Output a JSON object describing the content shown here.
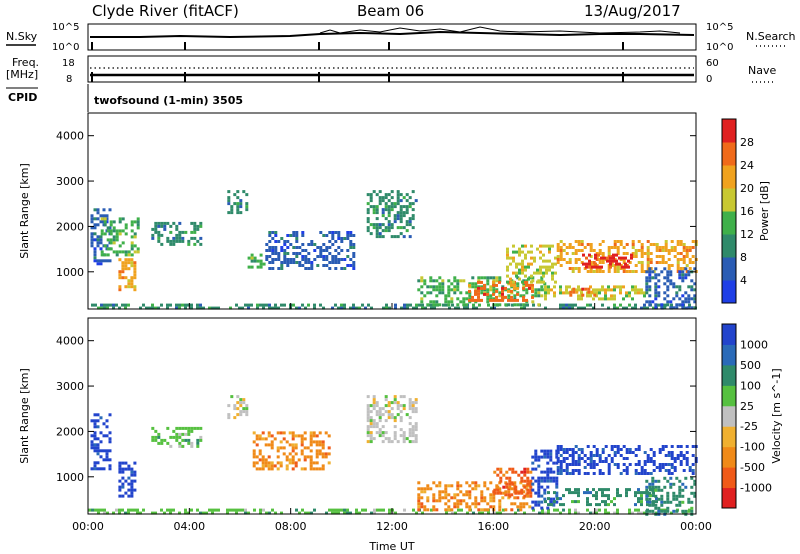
{
  "header": {
    "station": "Clyde River (fitACF)",
    "beam": "Beam 06",
    "date": "13/Aug/2017"
  },
  "top_panels": {
    "nsky_label": "N.Sky",
    "nsky_ticks": [
      "10^5",
      "10^0"
    ],
    "nsearch_label": "N.Search",
    "nsearch_ticks": [
      "10^5",
      "10^0"
    ],
    "freq_label": "Freq.",
    "freq_unit": "[MHz]",
    "freq_ticks": [
      "18",
      "8"
    ],
    "nave_label": "Nave",
    "nave_ticks": [
      "60",
      "0"
    ],
    "cpid_label": "CPID",
    "cpid_text": "twofsound (1-min) 3505"
  },
  "chart_data": [
    {
      "type": "heatmap",
      "name": "power",
      "ylabel": "Slant Range [km]",
      "xlabel": "",
      "yticks": [
        1000,
        2000,
        3000,
        4000
      ],
      "ylim": [
        180,
        4500
      ],
      "xlim": [
        0,
        24
      ],
      "xticks": [
        "00:00",
        "04:00",
        "08:00",
        "12:00",
        "16:00",
        "20:00",
        "00:00"
      ],
      "colorbar": {
        "label": "Power [dB]",
        "ticks": [
          "4",
          "8",
          "12",
          "16",
          "20",
          "24",
          "28"
        ],
        "colors": [
          "#1f3fe6",
          "#2a5cb4",
          "#2f8a6a",
          "#3fb04a",
          "#c8c832",
          "#f0a21e",
          "#f06a1a",
          "#e02020"
        ]
      },
      "regions": [
        {
          "t0": 0.0,
          "t1": 24.0,
          "r0": 180,
          "r1": 300,
          "level": 2
        },
        {
          "t0": 0.1,
          "t1": 0.9,
          "r0": 1200,
          "r1": 2400,
          "level": 1
        },
        {
          "t0": 0.5,
          "t1": 2.0,
          "r0": 1400,
          "r1": 2200,
          "level": 3
        },
        {
          "t0": 1.2,
          "t1": 1.9,
          "r0": 600,
          "r1": 1300,
          "level": 5
        },
        {
          "t0": 2.5,
          "t1": 4.5,
          "r0": 1600,
          "r1": 2100,
          "level": 2
        },
        {
          "t0": 5.5,
          "t1": 6.3,
          "r0": 2300,
          "r1": 2800,
          "level": 2
        },
        {
          "t0": 6.3,
          "t1": 7.0,
          "r0": 1100,
          "r1": 1400,
          "level": 3
        },
        {
          "t0": 7.0,
          "t1": 10.5,
          "r0": 1100,
          "r1": 1900,
          "level": 1
        },
        {
          "t0": 11.0,
          "t1": 13.0,
          "r0": 1800,
          "r1": 2800,
          "level": 2
        },
        {
          "t0": 13.0,
          "t1": 18.0,
          "r0": 300,
          "r1": 900,
          "level": 3
        },
        {
          "t0": 15.0,
          "t1": 17.5,
          "r0": 400,
          "r1": 800,
          "level": 6
        },
        {
          "t0": 16.5,
          "t1": 18.5,
          "r0": 800,
          "r1": 1600,
          "level": 4
        },
        {
          "t0": 18.5,
          "t1": 24.0,
          "r0": 1000,
          "r1": 1700,
          "level": 5
        },
        {
          "t0": 19.5,
          "t1": 21.5,
          "r0": 1100,
          "r1": 1400,
          "level": 7
        },
        {
          "t0": 18.0,
          "t1": 22.0,
          "r0": 400,
          "r1": 700,
          "level": 4
        },
        {
          "t0": 19.0,
          "t1": 20.0,
          "r0": 500,
          "r1": 650,
          "level": 6
        },
        {
          "t0": 22.0,
          "t1": 24.0,
          "r0": 200,
          "r1": 1100,
          "level": 1
        }
      ]
    },
    {
      "type": "heatmap",
      "name": "velocity",
      "ylabel": "Slant Range [km]",
      "xlabel": "Time UT",
      "yticks": [
        1000,
        2000,
        3000,
        4000
      ],
      "ylim": [
        180,
        4500
      ],
      "xlim": [
        0,
        24
      ],
      "xticks": [
        "00:00",
        "04:00",
        "08:00",
        "12:00",
        "16:00",
        "20:00",
        "00:00"
      ],
      "colorbar": {
        "label": "Velocity [m s^-1]",
        "ticks": [
          "1000",
          "500",
          "100",
          "25",
          "-25",
          "-100",
          "-500",
          "-1000"
        ],
        "colors": [
          "#2244cc",
          "#2a6ab8",
          "#2f8a6a",
          "#56c040",
          "#c0c0c0",
          "#f0b030",
          "#f08a18",
          "#f05a18",
          "#e02020"
        ]
      },
      "regions": [
        {
          "t0": 0.0,
          "t1": 24.0,
          "r0": 180,
          "r1": 300,
          "level": 3
        },
        {
          "t0": 0.1,
          "t1": 0.9,
          "r0": 1200,
          "r1": 2400,
          "level": 0
        },
        {
          "t0": 1.2,
          "t1": 1.9,
          "r0": 600,
          "r1": 1400,
          "level": 0
        },
        {
          "t0": 2.5,
          "t1": 4.5,
          "r0": 1700,
          "r1": 2100,
          "level": 3
        },
        {
          "t0": 5.5,
          "t1": 6.3,
          "r0": 2300,
          "r1": 2800,
          "level": 4
        },
        {
          "t0": 6.5,
          "t1": 9.5,
          "r0": 1200,
          "r1": 2000,
          "level": 6
        },
        {
          "t0": 11.0,
          "t1": 13.0,
          "r0": 1800,
          "r1": 2800,
          "level": 4
        },
        {
          "t0": 13.0,
          "t1": 17.5,
          "r0": 300,
          "r1": 900,
          "level": 6
        },
        {
          "t0": 16.0,
          "t1": 17.5,
          "r0": 500,
          "r1": 1200,
          "level": 7
        },
        {
          "t0": 17.5,
          "t1": 18.5,
          "r0": 300,
          "r1": 1600,
          "level": 0
        },
        {
          "t0": 18.5,
          "t1": 24.0,
          "r0": 1100,
          "r1": 1700,
          "level": 0
        },
        {
          "t0": 18.0,
          "t1": 22.5,
          "r0": 400,
          "r1": 750,
          "level": 2
        },
        {
          "t0": 22.0,
          "t1": 24.0,
          "r0": 200,
          "r1": 1000,
          "level": 2
        }
      ]
    }
  ]
}
